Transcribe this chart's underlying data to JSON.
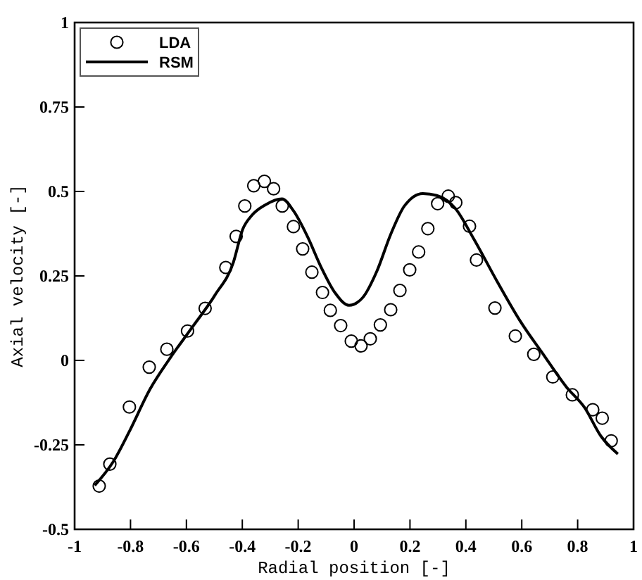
{
  "chart_data": {
    "type": "scatter",
    "xlabel": "Radial position [-]",
    "ylabel": "Axial velocity [-]",
    "xlim": [
      -1,
      1
    ],
    "ylim": [
      -0.5,
      1
    ],
    "xticks": [
      -1,
      -0.8,
      -0.6,
      -0.4,
      -0.2,
      0,
      0.2,
      0.4,
      0.6,
      0.8,
      1
    ],
    "yticks": [
      -0.5,
      -0.25,
      0,
      0.25,
      0.5,
      0.75,
      1
    ],
    "grid": false,
    "legend": "top left",
    "series": [
      {
        "name": "LDA",
        "marker": "circle",
        "color": "#000000",
        "x": [
          -0.912,
          -0.874,
          -0.804,
          -0.733,
          -0.67,
          -0.596,
          -0.533,
          -0.459,
          -0.422,
          -0.391,
          -0.359,
          -0.321,
          -0.288,
          -0.257,
          -0.217,
          -0.184,
          -0.151,
          -0.113,
          -0.085,
          -0.048,
          -0.01,
          0.025,
          0.058,
          0.094,
          0.131,
          0.164,
          0.199,
          0.231,
          0.264,
          0.299,
          0.337,
          0.364,
          0.413,
          0.438,
          0.504,
          0.577,
          0.643,
          0.711,
          0.781,
          0.854,
          0.888,
          0.92
        ],
        "values": [
          -0.372,
          -0.307,
          -0.138,
          -0.02,
          0.033,
          0.087,
          0.154,
          0.275,
          0.367,
          0.457,
          0.517,
          0.53,
          0.508,
          0.457,
          0.396,
          0.33,
          0.261,
          0.201,
          0.148,
          0.103,
          0.057,
          0.043,
          0.064,
          0.105,
          0.15,
          0.207,
          0.268,
          0.321,
          0.39,
          0.464,
          0.486,
          0.467,
          0.397,
          0.297,
          0.155,
          0.072,
          0.018,
          -0.049,
          -0.102,
          -0.146,
          -0.171,
          -0.238
        ]
      },
      {
        "name": "RSM",
        "type": "line",
        "marker": "none",
        "line_style": "solid",
        "color": "#000000",
        "x": [
          -0.928,
          -0.862,
          -0.804,
          -0.73,
          -0.664,
          -0.581,
          -0.498,
          -0.432,
          -0.399,
          -0.366,
          -0.316,
          -0.258,
          -0.217,
          -0.167,
          -0.118,
          -0.068,
          -0.018,
          0.031,
          0.081,
          0.131,
          0.18,
          0.246,
          0.296,
          0.362,
          0.428,
          0.511,
          0.594,
          0.676,
          0.759,
          0.825,
          0.883,
          0.944
        ],
        "values": [
          -0.37,
          -0.3,
          -0.21,
          -0.085,
          0,
          0.096,
          0.193,
          0.29,
          0.387,
          0.429,
          0.461,
          0.478,
          0.443,
          0.367,
          0.276,
          0.2,
          0.163,
          0.186,
          0.263,
          0.373,
          0.457,
          0.494,
          0.488,
          0.45,
          0.36,
          0.235,
          0.117,
          0.019,
          -0.078,
          -0.14,
          -0.224,
          -0.277
        ]
      }
    ]
  }
}
